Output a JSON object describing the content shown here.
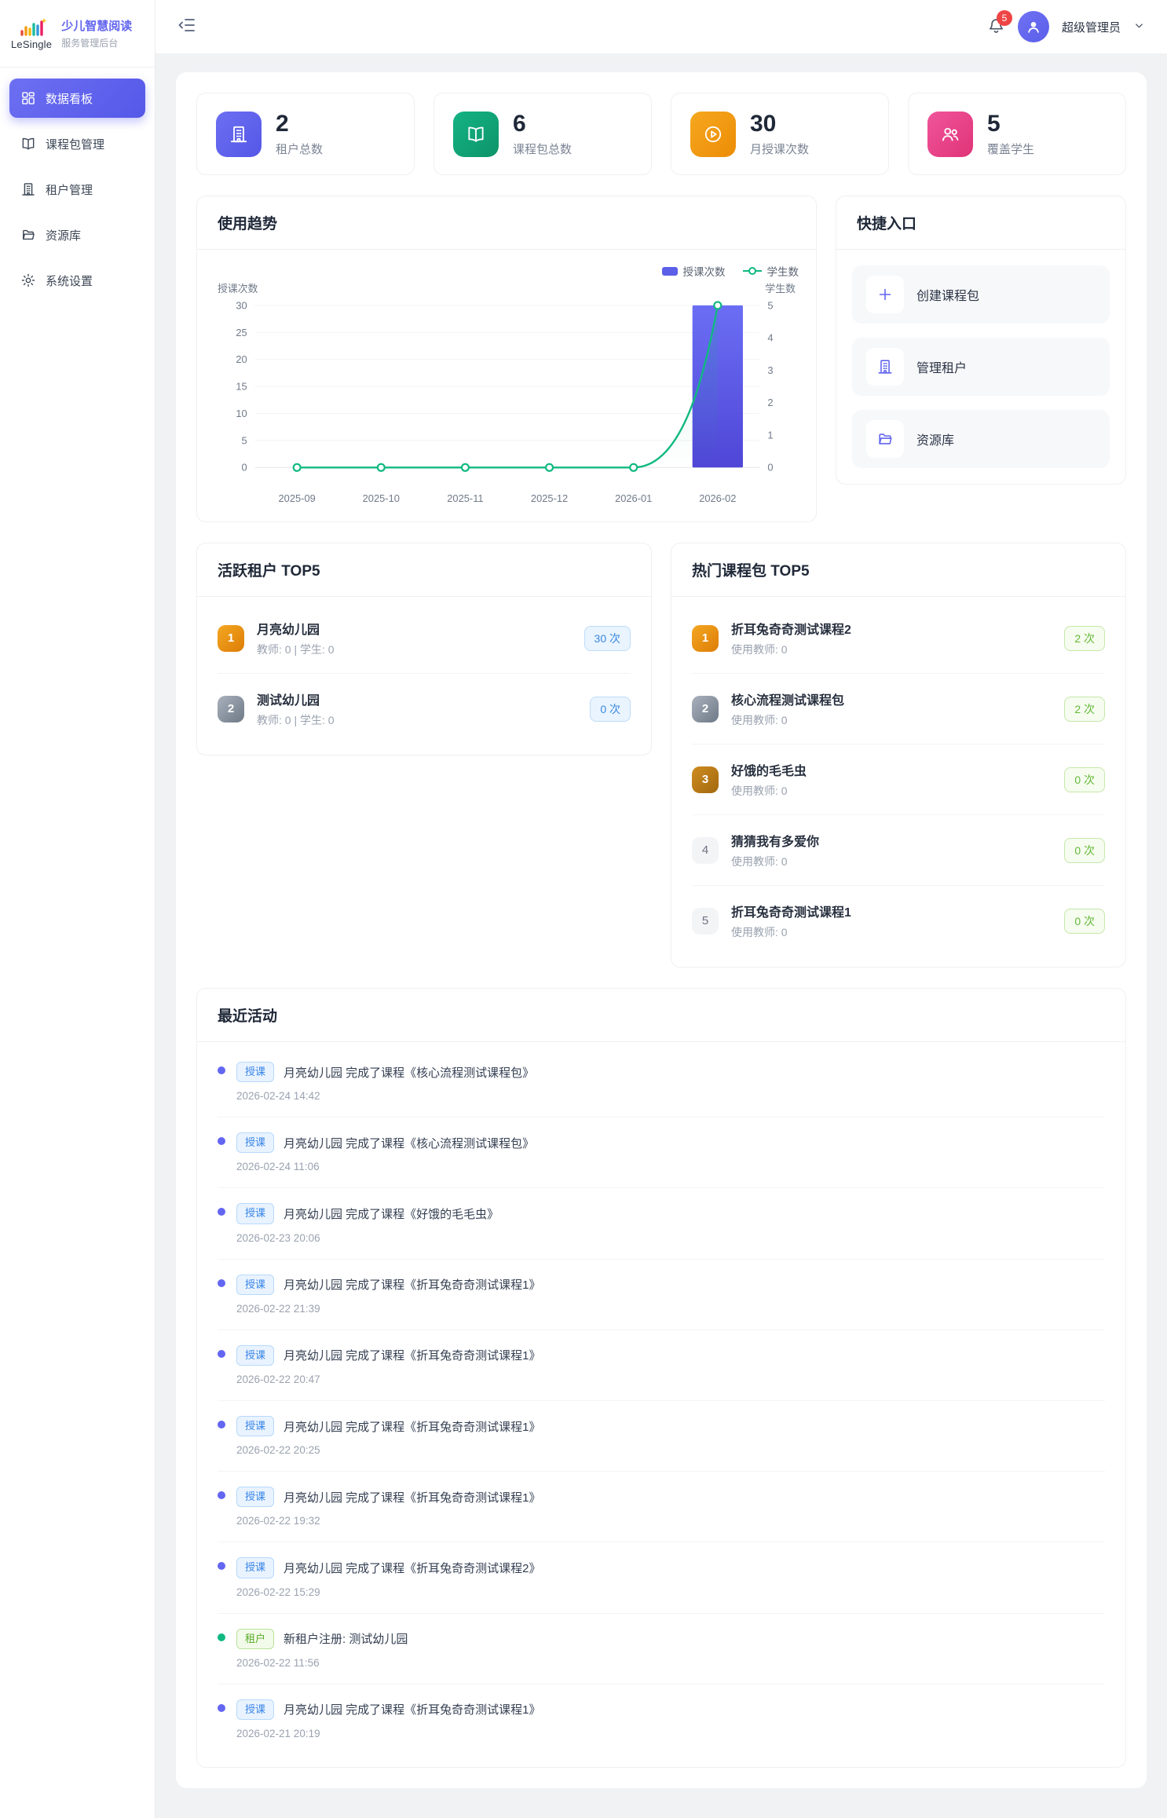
{
  "app": {
    "logo_text": "LeSingle",
    "brand_line1": "少儿智慧阅读",
    "brand_line2": "服务管理后台"
  },
  "header": {
    "notification_count": "5",
    "user_name": "超级管理员",
    "icons": [
      "collapse-sidebar-icon",
      "bell-icon",
      "user-avatar-icon",
      "chevron-down-icon"
    ]
  },
  "colors": {
    "primary": "#5b5fe8",
    "green": "#10b981",
    "orange": "#f59e0b",
    "pink": "#ec4899",
    "danger": "#ef4444",
    "blue": "#3b82f6"
  },
  "sidebar": {
    "items": [
      {
        "label": "数据看板",
        "icon": "dashboard",
        "active": "active"
      },
      {
        "label": "课程包管理",
        "icon": "book",
        "active": ""
      },
      {
        "label": "租户管理",
        "icon": "building",
        "active": ""
      },
      {
        "label": "资源库",
        "icon": "folder",
        "active": ""
      },
      {
        "label": "系统设置",
        "icon": "gear",
        "active": ""
      }
    ]
  },
  "stats": {
    "items": [
      {
        "value": "2",
        "label": "租户总数",
        "icon": "building",
        "color": "purple"
      },
      {
        "value": "6",
        "label": "课程包总数",
        "icon": "book",
        "color": "green"
      },
      {
        "value": "30",
        "label": "月授课次数",
        "icon": "play",
        "color": "orange"
      },
      {
        "value": "5",
        "label": "覆盖学生",
        "icon": "people",
        "color": "pink"
      }
    ]
  },
  "trend": {
    "title": "使用趋势"
  },
  "chart_data": {
    "type": "bar",
    "title": "使用趋势",
    "categories": [
      "2025-09",
      "2025-10",
      "2025-11",
      "2025-12",
      "2026-01",
      "2026-02"
    ],
    "series": [
      {
        "name": "授课次数",
        "type": "bar",
        "axis": "left",
        "color": "#5b5fe8",
        "values": [
          0,
          0,
          0,
          0,
          0,
          30
        ]
      },
      {
        "name": "学生数",
        "type": "line",
        "axis": "right",
        "color": "#10b981",
        "values": [
          0,
          0,
          0,
          0,
          0,
          5
        ]
      }
    ],
    "left_axis": {
      "label": "授课次数",
      "min": 0,
      "max": 30,
      "ticks": [
        0,
        5,
        10,
        15,
        20,
        25,
        30
      ]
    },
    "right_axis": {
      "label": "学生数",
      "min": 0,
      "max": 5,
      "ticks": [
        0,
        1,
        2,
        3,
        4,
        5
      ]
    },
    "legend_position": "top-right",
    "grid": "horizontal"
  },
  "quick": {
    "title": "快捷入口",
    "items": [
      {
        "label": "创建课程包",
        "icon": "plus"
      },
      {
        "label": "管理租户",
        "icon": "building"
      },
      {
        "label": "资源库",
        "icon": "folder"
      }
    ]
  },
  "tenants": {
    "title": "活跃租户 TOP5",
    "items": [
      {
        "rank": "1",
        "rank_class": "gold",
        "name": "月亮幼儿园",
        "sub": "教师: 0 | 学生: 0",
        "count": "30 次"
      },
      {
        "rank": "2",
        "rank_class": "silver",
        "name": "测试幼儿园",
        "sub": "教师: 0 | 学生: 0",
        "count": "0 次"
      }
    ]
  },
  "courses": {
    "title": "热门课程包 TOP5",
    "items": [
      {
        "rank": "1",
        "rank_class": "gold",
        "name": "折耳兔奇奇测试课程2",
        "sub": "使用教师: 0",
        "count": "2 次"
      },
      {
        "rank": "2",
        "rank_class": "silver",
        "name": "核心流程测试课程包",
        "sub": "使用教师: 0",
        "count": "2 次"
      },
      {
        "rank": "3",
        "rank_class": "bronze",
        "name": "好饿的毛毛虫",
        "sub": "使用教师: 0",
        "count": "0 次"
      },
      {
        "rank": "4",
        "rank_class": "plain",
        "name": "猜猜我有多爱你",
        "sub": "使用教师: 0",
        "count": "0 次"
      },
      {
        "rank": "5",
        "rank_class": "plain",
        "name": "折耳兔奇奇测试课程1",
        "sub": "使用教师: 0",
        "count": "0 次"
      }
    ]
  },
  "activities": {
    "title": "最近活动",
    "items": [
      {
        "type": "lesson",
        "tag": "授课",
        "text": "月亮幼儿园 完成了课程《核心流程测试课程包》",
        "time": "2026-02-24 14:42"
      },
      {
        "type": "lesson",
        "tag": "授课",
        "text": "月亮幼儿园 完成了课程《核心流程测试课程包》",
        "time": "2026-02-24 11:06"
      },
      {
        "type": "lesson",
        "tag": "授课",
        "text": "月亮幼儿园 完成了课程《好饿的毛毛虫》",
        "time": "2026-02-23 20:06"
      },
      {
        "type": "lesson",
        "tag": "授课",
        "text": "月亮幼儿园 完成了课程《折耳兔奇奇测试课程1》",
        "time": "2026-02-22 21:39"
      },
      {
        "type": "lesson",
        "tag": "授课",
        "text": "月亮幼儿园 完成了课程《折耳兔奇奇测试课程1》",
        "time": "2026-02-22 20:47"
      },
      {
        "type": "lesson",
        "tag": "授课",
        "text": "月亮幼儿园 完成了课程《折耳兔奇奇测试课程1》",
        "time": "2026-02-22 20:25"
      },
      {
        "type": "lesson",
        "tag": "授课",
        "text": "月亮幼儿园 完成了课程《折耳兔奇奇测试课程1》",
        "time": "2026-02-22 19:32"
      },
      {
        "type": "lesson",
        "tag": "授课",
        "text": "月亮幼儿园 完成了课程《折耳兔奇奇测试课程2》",
        "time": "2026-02-22 15:29"
      },
      {
        "type": "tenant",
        "tag": "租户",
        "text": "新租户注册: 测试幼儿园",
        "time": "2026-02-22 11:56"
      },
      {
        "type": "lesson",
        "tag": "授课",
        "text": "月亮幼儿园 完成了课程《折耳兔奇奇测试课程1》",
        "time": "2026-02-21 20:19"
      }
    ]
  }
}
